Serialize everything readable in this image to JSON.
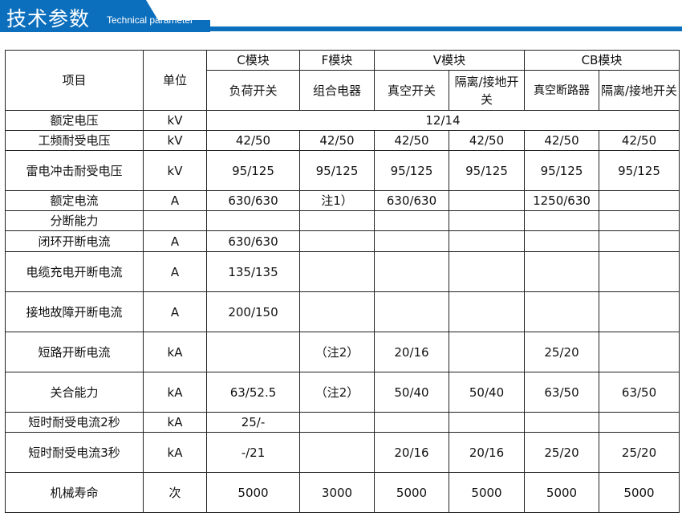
{
  "header": {
    "title": "技术参数",
    "subtitle": "Technical parameter",
    "color": "#0c6fbd"
  },
  "table": {
    "col_item": "项目",
    "col_unit": "单位",
    "groups": [
      "C模块",
      "F模块",
      "V模块",
      "CB模块"
    ],
    "sub": [
      "负荷开关",
      "组合电器",
      "真空开关",
      "隔离/接地开关",
      "真空断路器",
      "隔离/接地开关"
    ],
    "rated_voltage": {
      "label": "额定电压",
      "unit": "kV",
      "value": "12/14"
    },
    "rows": [
      {
        "label": "工频耐受电压",
        "unit": "kV",
        "cells": [
          "42/50",
          "42/50",
          "42/50",
          "42/50",
          "42/50",
          "42/50"
        ]
      },
      {
        "label": "雷电冲击耐受电压",
        "unit": "kV",
        "cells": [
          "95/125",
          "95/125",
          "95/125",
          "95/125",
          "95/125",
          "95/125"
        ]
      },
      {
        "label": "额定电流",
        "unit": "A",
        "cells": [
          "630/630",
          "注1）",
          "630/630",
          "",
          "1250/630",
          ""
        ]
      },
      {
        "label": "分断能力",
        "unit": "",
        "cells": [
          "",
          "",
          "",
          "",
          "",
          ""
        ]
      },
      {
        "label": "闭环开断电流",
        "unit": "A",
        "cells": [
          "630/630",
          "",
          "",
          "",
          "",
          ""
        ]
      },
      {
        "label": "电缆充电开断电流",
        "unit": "A",
        "cells": [
          "135/135",
          "",
          "",
          "",
          "",
          ""
        ]
      },
      {
        "label": "接地故障开断电流",
        "unit": "A",
        "cells": [
          "200/150",
          "",
          "",
          "",
          "",
          ""
        ]
      },
      {
        "label": "短路开断电流",
        "unit": "kA",
        "cells": [
          "",
          "（注2）",
          "20/16",
          "",
          "25/20",
          ""
        ]
      },
      {
        "label": "关合能力",
        "unit": "kA",
        "cells": [
          "63/52.5",
          "（注2）",
          "50/40",
          "50/40",
          "63/50",
          "63/50"
        ]
      },
      {
        "label": "短时耐受电流2秒",
        "unit": "kA",
        "cells": [
          "25/-",
          "",
          "",
          "",
          "",
          ""
        ]
      },
      {
        "label": "短时耐受电流3秒",
        "unit": "kA",
        "cells": [
          "-/21",
          "",
          "20/16",
          "20/16",
          "25/20",
          "25/20"
        ]
      },
      {
        "label": "机械寿命",
        "unit": "次",
        "cells": [
          "5000",
          "3000",
          "5000",
          "5000",
          "5000",
          "5000"
        ]
      }
    ]
  }
}
